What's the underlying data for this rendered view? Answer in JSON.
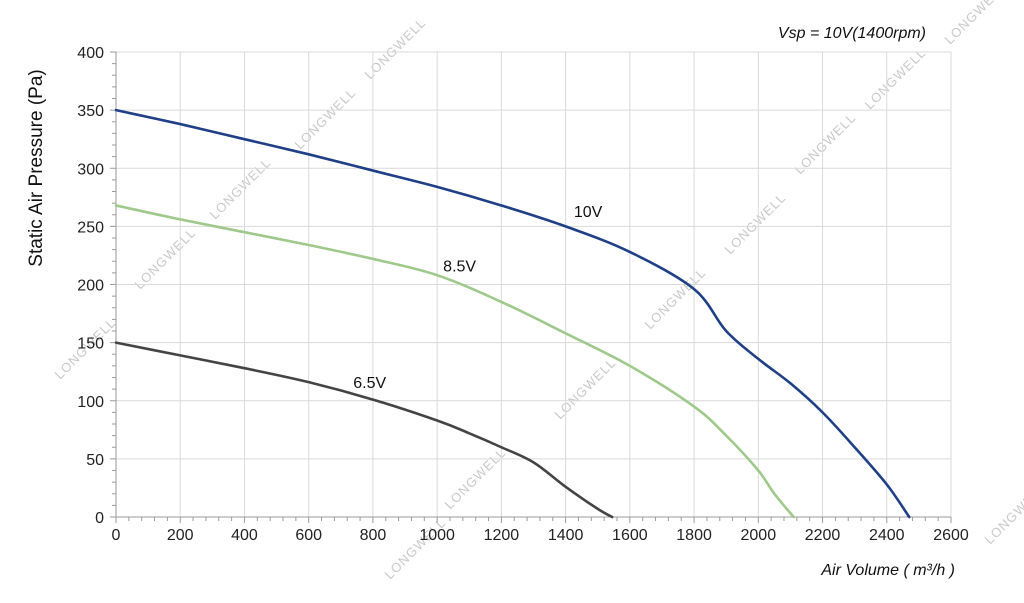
{
  "chart_data": {
    "type": "line",
    "title": "",
    "note": "Vsp = 10V(1400rpm)",
    "xlabel": "Air Volume ( m³/h )",
    "ylabel": "Static Air Pressure  (Pa)",
    "xlim": [
      0,
      2600
    ],
    "ylim": [
      0,
      400
    ],
    "xticks": [
      "0",
      "200",
      "400",
      "600",
      "800",
      "1000",
      "1200",
      "1400",
      "1600",
      "1800",
      "2000",
      "2200",
      "2400",
      "2600"
    ],
    "yticks": [
      "0",
      "50",
      "100",
      "150",
      "200",
      "250",
      "300",
      "350",
      "400"
    ],
    "grid": true,
    "watermark": "LONGWELL",
    "series": [
      {
        "name": "10V",
        "color": "#1f3f86",
        "x": [
          0,
          200,
          400,
          600,
          800,
          1000,
          1200,
          1400,
          1600,
          1800,
          1900,
          2000,
          2100,
          2200,
          2300,
          2400,
          2470
        ],
        "y": [
          350,
          338,
          325,
          312,
          298,
          284,
          268,
          250,
          228,
          196,
          160,
          136,
          115,
          90,
          60,
          28,
          0
        ]
      },
      {
        "name": "8.5V",
        "color": "#9ec98a",
        "x": [
          0,
          200,
          400,
          600,
          800,
          1000,
          1200,
          1400,
          1600,
          1800,
          1900,
          2000,
          2050,
          2110
        ],
        "y": [
          268,
          256,
          245,
          234,
          222,
          208,
          185,
          158,
          130,
          95,
          70,
          40,
          20,
          0
        ]
      },
      {
        "name": "6.5V",
        "color": "#444444",
        "x": [
          0,
          200,
          400,
          600,
          800,
          1000,
          1100,
          1200,
          1300,
          1400,
          1500,
          1545
        ],
        "y": [
          150,
          139,
          128,
          116,
          101,
          83,
          72,
          60,
          47,
          26,
          7,
          0
        ]
      }
    ]
  }
}
